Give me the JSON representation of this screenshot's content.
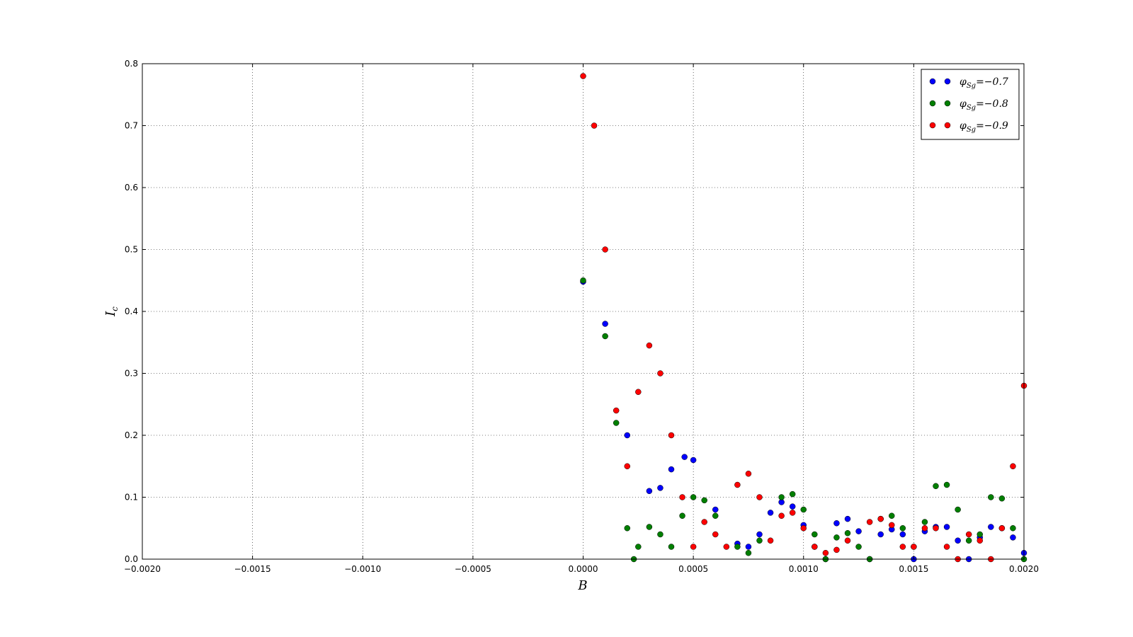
{
  "chart_data": {
    "type": "scatter",
    "title": "",
    "xlabel": "B",
    "ylabel_main": "I",
    "ylabel_sub": "c",
    "xlim": [
      -0.002,
      0.002
    ],
    "ylim": [
      0,
      0.8
    ],
    "x_ticks": [
      -0.002,
      -0.0015,
      -0.001,
      -0.0005,
      0,
      0.0005,
      0.001,
      0.0015,
      0.002
    ],
    "x_tick_labels": [
      "−0.0020",
      "−0.0015",
      "−0.0010",
      "−0.0005",
      "0.0000",
      "0.0005",
      "0.0010",
      "0.0015",
      "0.0020"
    ],
    "y_ticks": [
      0,
      0.1,
      0.2,
      0.3,
      0.4,
      0.5,
      0.6,
      0.7,
      0.8
    ],
    "y_tick_labels": [
      "0.0",
      "0.1",
      "0.2",
      "0.3",
      "0.4",
      "0.5",
      "0.6",
      "0.7",
      "0.8"
    ],
    "grid": true,
    "legend_position": "top-right",
    "series": [
      {
        "name": "φSg=−0.7",
        "name_symbol": "φ",
        "name_sub": "Sg",
        "name_value": "=−0.7",
        "color": "#0000ff",
        "points": [
          [
            0.0,
            0.448
          ],
          [
            0.0001,
            0.38
          ],
          [
            0.0002,
            0.2
          ],
          [
            0.0003,
            0.11
          ],
          [
            0.00035,
            0.115
          ],
          [
            0.0004,
            0.145
          ],
          [
            0.00046,
            0.165
          ],
          [
            0.0005,
            0.16
          ],
          [
            0.0006,
            0.08
          ],
          [
            0.0007,
            0.025
          ],
          [
            0.00075,
            0.02
          ],
          [
            0.0008,
            0.04
          ],
          [
            0.00085,
            0.075
          ],
          [
            0.0009,
            0.092
          ],
          [
            0.00095,
            0.085
          ],
          [
            0.001,
            0.055
          ],
          [
            0.00105,
            0.02
          ],
          [
            0.0011,
            0.0
          ],
          [
            0.00115,
            0.058
          ],
          [
            0.0012,
            0.065
          ],
          [
            0.00125,
            0.045
          ],
          [
            0.0013,
            0.0
          ],
          [
            0.00135,
            0.04
          ],
          [
            0.0014,
            0.048
          ],
          [
            0.00145,
            0.04
          ],
          [
            0.0015,
            0.0
          ],
          [
            0.00155,
            0.045
          ],
          [
            0.0016,
            0.052
          ],
          [
            0.00165,
            0.052
          ],
          [
            0.0017,
            0.03
          ],
          [
            0.00175,
            0.0
          ],
          [
            0.0018,
            0.035
          ],
          [
            0.00185,
            0.052
          ],
          [
            0.0019,
            0.05
          ],
          [
            0.00195,
            0.035
          ],
          [
            0.002,
            0.01
          ]
        ]
      },
      {
        "name": "φSg=−0.8",
        "name_symbol": "φ",
        "name_sub": "Sg",
        "name_value": "=−0.8",
        "color": "#007f00",
        "points": [
          [
            0.0,
            0.45
          ],
          [
            0.0001,
            0.36
          ],
          [
            0.00015,
            0.22
          ],
          [
            0.0002,
            0.05
          ],
          [
            0.00023,
            0.0
          ],
          [
            0.00025,
            0.02
          ],
          [
            0.0003,
            0.052
          ],
          [
            0.00035,
            0.04
          ],
          [
            0.0004,
            0.02
          ],
          [
            0.00045,
            0.07
          ],
          [
            0.0005,
            0.1
          ],
          [
            0.00055,
            0.095
          ],
          [
            0.0006,
            0.07
          ],
          [
            0.0007,
            0.02
          ],
          [
            0.00075,
            0.01
          ],
          [
            0.0008,
            0.03
          ],
          [
            0.0009,
            0.1
          ],
          [
            0.00095,
            0.105
          ],
          [
            0.001,
            0.08
          ],
          [
            0.00105,
            0.04
          ],
          [
            0.0011,
            0.0
          ],
          [
            0.00115,
            0.035
          ],
          [
            0.0012,
            0.042
          ],
          [
            0.00125,
            0.02
          ],
          [
            0.0013,
            0.0
          ],
          [
            0.00135,
            0.065
          ],
          [
            0.0014,
            0.07
          ],
          [
            0.00145,
            0.05
          ],
          [
            0.0015,
            0.02
          ],
          [
            0.00155,
            0.06
          ],
          [
            0.0016,
            0.118
          ],
          [
            0.00165,
            0.12
          ],
          [
            0.0017,
            0.08
          ],
          [
            0.00175,
            0.03
          ],
          [
            0.0018,
            0.04
          ],
          [
            0.00185,
            0.1
          ],
          [
            0.0019,
            0.098
          ],
          [
            0.00195,
            0.05
          ],
          [
            0.002,
            0.0
          ]
        ]
      },
      {
        "name": "φSg=−0.9",
        "name_symbol": "φ",
        "name_sub": "Sg",
        "name_value": "=−0.9",
        "color": "#ff0000",
        "points": [
          [
            0.0,
            0.78
          ],
          [
            5e-05,
            0.7
          ],
          [
            0.0001,
            0.5
          ],
          [
            0.00015,
            0.24
          ],
          [
            0.0002,
            0.15
          ],
          [
            0.00025,
            0.27
          ],
          [
            0.0003,
            0.345
          ],
          [
            0.00035,
            0.3
          ],
          [
            0.0004,
            0.2
          ],
          [
            0.00045,
            0.1
          ],
          [
            0.0005,
            0.02
          ],
          [
            0.00055,
            0.06
          ],
          [
            0.0006,
            0.04
          ],
          [
            0.00065,
            0.02
          ],
          [
            0.0007,
            0.12
          ],
          [
            0.00075,
            0.138
          ],
          [
            0.0008,
            0.1
          ],
          [
            0.00085,
            0.03
          ],
          [
            0.0009,
            0.07
          ],
          [
            0.00095,
            0.075
          ],
          [
            0.001,
            0.05
          ],
          [
            0.00105,
            0.02
          ],
          [
            0.0011,
            0.01
          ],
          [
            0.00115,
            0.015
          ],
          [
            0.0012,
            0.03
          ],
          [
            0.0013,
            0.06
          ],
          [
            0.00135,
            0.065
          ],
          [
            0.0014,
            0.055
          ],
          [
            0.00145,
            0.02
          ],
          [
            0.0015,
            0.02
          ],
          [
            0.00155,
            0.05
          ],
          [
            0.0016,
            0.05
          ],
          [
            0.00165,
            0.02
          ],
          [
            0.0017,
            0.0
          ],
          [
            0.00175,
            0.04
          ],
          [
            0.0018,
            0.03
          ],
          [
            0.00185,
            0.0
          ],
          [
            0.0019,
            0.05
          ],
          [
            0.00195,
            0.15
          ],
          [
            0.002,
            0.28
          ]
        ]
      }
    ]
  }
}
